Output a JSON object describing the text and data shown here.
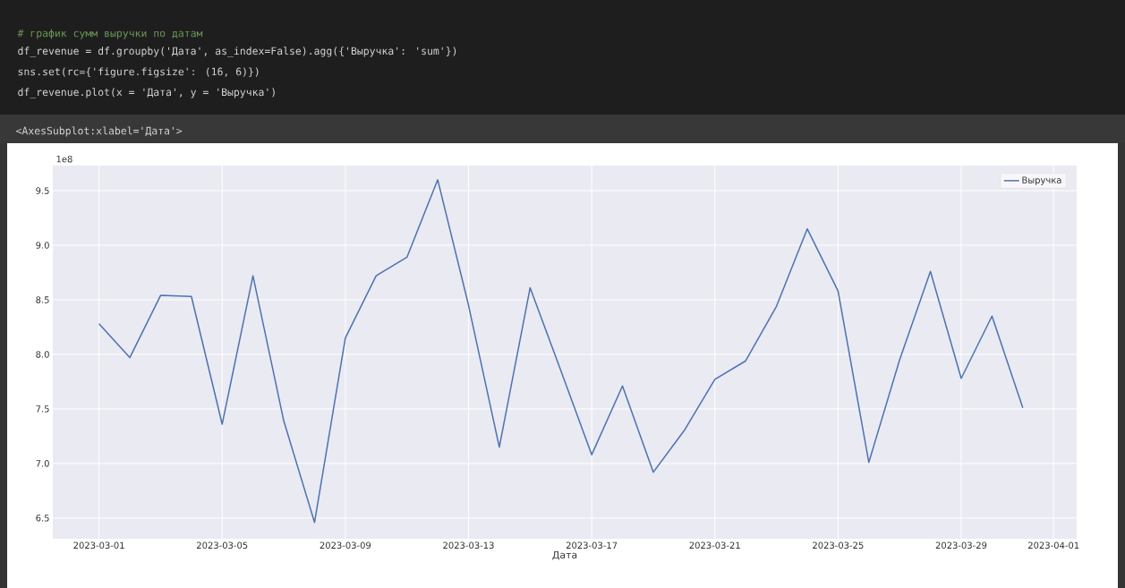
{
  "chart_data": {
    "type": "line",
    "xlabel": "Дата",
    "annotations": [
      "# график сумм выручки по датам",
      "df_revenue = df.groupby('Дата', as_index=False).agg({'Выручка': 'sum'})",
      "sns.set(rc={'figure.figsize': (16, 6)})",
      "df_revenue.plot(x = 'Дата', y = 'Выручка')",
      "<AxesSubplot:xlabel='Дата'>",
      "1e8"
    ],
    "x": [
      "2023-03-01",
      "2023-03-02",
      "2023-03-03",
      "2023-03-04",
      "2023-03-05",
      "2023-03-06",
      "2023-03-07",
      "2023-03-08",
      "2023-03-09",
      "2023-03-10",
      "2023-03-11",
      "2023-03-12",
      "2023-03-13",
      "2023-03-14",
      "2023-03-15",
      "2023-03-16",
      "2023-03-17",
      "2023-03-18",
      "2023-03-19",
      "2023-03-20",
      "2023-03-21",
      "2023-03-22",
      "2023-03-23",
      "2023-03-24",
      "2023-03-25",
      "2023-03-26",
      "2023-03-27",
      "2023-03-28",
      "2023-03-29",
      "2023-03-30",
      "2023-03-31"
    ],
    "series": [
      {
        "name": "Выручка",
        "color": "#4c72b0",
        "values": [
          8.28,
          7.97,
          8.54,
          8.53,
          7.36,
          8.72,
          7.39,
          6.46,
          8.15,
          8.72,
          8.89,
          9.6,
          8.45,
          7.15,
          8.61,
          7.85,
          7.08,
          7.71,
          6.92,
          7.3,
          7.77,
          7.94,
          8.44,
          9.15,
          8.58,
          7.01,
          7.95,
          8.76,
          7.78,
          8.35,
          7.51
        ]
      }
    ],
    "xlim": [
      "2023-02-27T12:00",
      "2023-04-01T18:00"
    ],
    "ylim": [
      6.31,
      9.73
    ],
    "xticks": [
      "2023-03-01",
      "2023-03-05",
      "2023-03-09",
      "2023-03-13",
      "2023-03-17",
      "2023-03-21",
      "2023-03-25",
      "2023-03-29",
      "2023-04-01"
    ],
    "yticks": [
      6.5,
      {
        "value": 7,
        "label": "7.0"
      },
      7.5,
      {
        "value": 8,
        "label": "8.0"
      },
      8.5,
      {
        "value": 9,
        "label": "9.0"
      },
      9.5
    ],
    "grid": true,
    "legend": "top right"
  }
}
